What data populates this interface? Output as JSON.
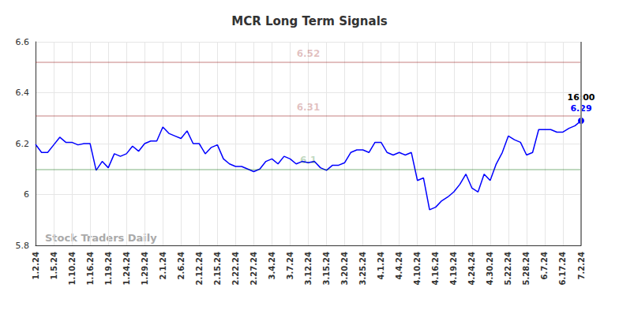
{
  "chart_data": {
    "type": "line",
    "title": "MCR Long Term Signals",
    "watermark": "Stock Traders Daily",
    "categories": [
      "1.2.24",
      null,
      null,
      "1.5.24",
      null,
      null,
      "1.10.24",
      null,
      null,
      "1.16.24",
      null,
      null,
      "1.19.24",
      null,
      null,
      "1.24.24",
      null,
      null,
      "1.29.24",
      null,
      null,
      "2.1.24",
      null,
      null,
      "2.6.24",
      null,
      null,
      "2.12.24",
      null,
      null,
      "2.15.24",
      null,
      null,
      "2.22.24",
      null,
      null,
      "2.27.24",
      null,
      null,
      "3.4.24",
      null,
      null,
      "3.7.24",
      null,
      null,
      "3.12.24",
      null,
      null,
      "3.15.24",
      null,
      null,
      "3.20.24",
      null,
      null,
      "3.25.24",
      null,
      null,
      "4.1.24",
      null,
      null,
      "4.4.24",
      null,
      null,
      "4.10.24",
      null,
      null,
      "4.16.24",
      null,
      null,
      "4.19.24",
      null,
      null,
      "4.24.24",
      null,
      null,
      "4.30.24",
      null,
      null,
      "5.22.24",
      null,
      null,
      "5.28.24",
      null,
      null,
      "6.7.24",
      null,
      null,
      "6.17.24",
      null,
      null,
      "7.2.24"
    ],
    "values": [
      6.197,
      6.165,
      6.165,
      6.195,
      6.225,
      6.205,
      6.205,
      6.195,
      6.2,
      6.2,
      6.095,
      6.13,
      6.105,
      6.16,
      6.15,
      6.16,
      6.19,
      6.17,
      6.2,
      6.21,
      6.21,
      6.265,
      6.24,
      6.23,
      6.22,
      6.25,
      6.2,
      6.2,
      6.16,
      6.185,
      6.195,
      6.14,
      6.12,
      6.11,
      6.11,
      6.1,
      6.09,
      6.1,
      6.13,
      6.14,
      6.12,
      6.15,
      6.14,
      6.12,
      6.13,
      6.125,
      6.13,
      6.105,
      6.095,
      6.115,
      6.115,
      6.125,
      6.165,
      6.175,
      6.175,
      6.165,
      6.205,
      6.205,
      6.165,
      6.155,
      6.165,
      6.155,
      6.165,
      6.055,
      6.065,
      5.94,
      5.95,
      5.975,
      5.99,
      6.01,
      6.04,
      6.08,
      6.025,
      6.01,
      6.08,
      6.055,
      6.12,
      6.165,
      6.23,
      6.215,
      6.205,
      6.155,
      6.165,
      6.255,
      6.255,
      6.255,
      6.245,
      6.245,
      6.26,
      6.27,
      6.29
    ],
    "color": "#0000ff",
    "end_label": "16:00",
    "reference_lines": [
      {
        "value": 6.52,
        "label": "6.52",
        "color": "#8b0000"
      },
      {
        "value": 6.31,
        "label": "6.31",
        "color": "#8b0000"
      },
      {
        "value": 6.1,
        "label": "6.1",
        "color": "#006400"
      }
    ],
    "ylim": [
      5.8,
      6.6
    ],
    "yticks": [
      5.8,
      6,
      6.2,
      6.4,
      6.6
    ],
    "grid": true
  }
}
